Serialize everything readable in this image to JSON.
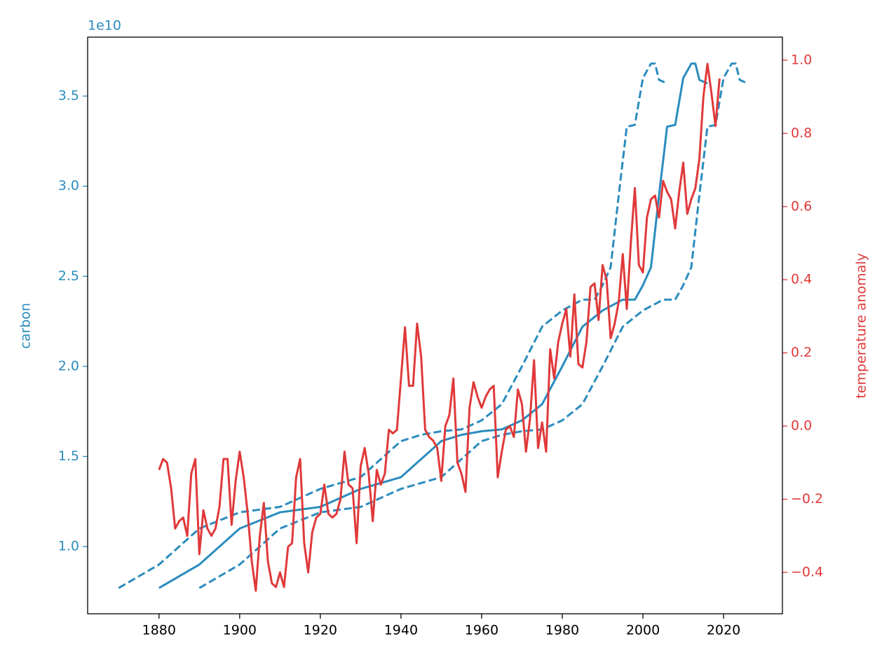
{
  "chart_data": {
    "type": "line",
    "offset_label": "1e10",
    "ylabel": "carbon",
    "y2label": "temperature anomaly",
    "xlim": [
      1862.3,
      2034.6
    ],
    "xticks": [
      1880,
      1900,
      1920,
      1940,
      1960,
      1980,
      2000,
      2020
    ],
    "ylim": [
      0.627,
      3.827
    ],
    "yticks": [
      {
        "value": 1,
        "label": "1.0"
      },
      1.5,
      {
        "value": 2,
        "label": "2.0"
      },
      2.5,
      {
        "value": 3,
        "label": "3.0"
      },
      3.5
    ],
    "y2lim": [
      -0.513,
      1.063
    ],
    "y2ticks": [
      {
        "value": -0.4,
        "label": "−0.4"
      },
      {
        "value": -0.2,
        "label": "−0.2"
      },
      {
        "value": 0,
        "label": "0.0"
      },
      0.2,
      0.4,
      0.6,
      0.8,
      {
        "value": 1,
        "label": "1.0"
      }
    ],
    "ycolor": "#2b8cbe",
    "y2color": "#e0393a",
    "series": [
      {
        "color": "#2b8cbe",
        "dashed": false,
        "x": [
          1880,
          1890,
          1900,
          1910,
          1920,
          1930,
          1940,
          1950,
          1955,
          1960,
          1965,
          1970,
          1975,
          1980,
          1985,
          1990,
          1995,
          1998,
          2000,
          2002,
          2004,
          2006,
          2008,
          2010,
          2012,
          2013,
          2014,
          2016
        ],
        "values": [
          0.77,
          0.9,
          1.1,
          1.19,
          1.22,
          1.32,
          1.385,
          1.585,
          1.62,
          1.64,
          1.65,
          1.7,
          1.79,
          2.0,
          2.22,
          2.31,
          2.37,
          2.37,
          2.45,
          2.55,
          2.95,
          3.33,
          3.34,
          3.6,
          3.68,
          3.68,
          3.59,
          3.57
        ]
      },
      {
        "color": "#2b8cbe",
        "dashed": true,
        "x": [
          1870,
          1880,
          1890,
          1900,
          1910,
          1920,
          1930,
          1940,
          1945,
          1950,
          1955,
          1960,
          1965,
          1970,
          1975,
          1980,
          1985,
          1988,
          1990,
          1992,
          1994,
          1996,
          1998,
          2000,
          2002,
          2003,
          2004,
          2006
        ],
        "values": [
          0.77,
          0.9,
          1.1,
          1.19,
          1.22,
          1.32,
          1.385,
          1.585,
          1.62,
          1.64,
          1.65,
          1.7,
          1.79,
          2.0,
          2.22,
          2.31,
          2.37,
          2.37,
          2.45,
          2.55,
          2.95,
          3.33,
          3.34,
          3.6,
          3.68,
          3.68,
          3.59,
          3.57
        ]
      },
      {
        "color": "#2b8cbe",
        "dashed": true,
        "x": [
          1890,
          1900,
          1910,
          1920,
          1930,
          1940,
          1950,
          1960,
          1965,
          1970,
          1975,
          1980,
          1985,
          1990,
          1995,
          2000,
          2005,
          2008,
          2010,
          2012,
          2014,
          2016,
          2018,
          2020,
          2022,
          2023,
          2024,
          2026
        ],
        "values": [
          0.77,
          0.9,
          1.1,
          1.19,
          1.22,
          1.32,
          1.385,
          1.585,
          1.62,
          1.64,
          1.65,
          1.7,
          1.79,
          2.0,
          2.22,
          2.31,
          2.37,
          2.37,
          2.45,
          2.55,
          2.95,
          3.33,
          3.34,
          3.6,
          3.68,
          3.68,
          3.59,
          3.57
        ]
      },
      {
        "color": "#e0393a",
        "dashed": false,
        "axis": "y2",
        "x": [
          1880,
          1881,
          1882,
          1883,
          1884,
          1885,
          1886,
          1887,
          1888,
          1889,
          1890,
          1891,
          1892,
          1893,
          1894,
          1895,
          1896,
          1897,
          1898,
          1899,
          1900,
          1901,
          1902,
          1903,
          1904,
          1905,
          1906,
          1907,
          1908,
          1909,
          1910,
          1911,
          1912,
          1913,
          1914,
          1915,
          1916,
          1917,
          1918,
          1919,
          1920,
          1921,
          1922,
          1923,
          1924,
          1925,
          1926,
          1927,
          1928,
          1929,
          1930,
          1931,
          1932,
          1933,
          1934,
          1935,
          1936,
          1937,
          1938,
          1939,
          1940,
          1941,
          1942,
          1943,
          1944,
          1945,
          1946,
          1947,
          1948,
          1949,
          1950,
          1951,
          1952,
          1953,
          1954,
          1955,
          1956,
          1957,
          1958,
          1959,
          1960,
          1961,
          1962,
          1963,
          1964,
          1965,
          1966,
          1967,
          1968,
          1969,
          1970,
          1971,
          1972,
          1973,
          1974,
          1975,
          1976,
          1977,
          1978,
          1979,
          1980,
          1981,
          1982,
          1983,
          1984,
          1985,
          1986,
          1987,
          1988,
          1989,
          1990,
          1991,
          1992,
          1993,
          1994,
          1995,
          1996,
          1997,
          1998,
          1999,
          2000,
          2001,
          2002,
          2003,
          2004,
          2005,
          2006,
          2007,
          2008,
          2009,
          2010,
          2011,
          2012,
          2013,
          2014,
          2015,
          2016,
          2017,
          2018,
          2019
        ],
        "values": [
          -0.12,
          -0.09,
          -0.1,
          -0.17,
          -0.28,
          -0.26,
          -0.25,
          -0.3,
          -0.13,
          -0.09,
          -0.35,
          -0.23,
          -0.28,
          -0.3,
          -0.28,
          -0.22,
          -0.09,
          -0.09,
          -0.27,
          -0.15,
          -0.07,
          -0.14,
          -0.24,
          -0.37,
          -0.45,
          -0.3,
          -0.21,
          -0.37,
          -0.43,
          -0.44,
          -0.4,
          -0.44,
          -0.33,
          -0.32,
          -0.14,
          -0.09,
          -0.32,
          -0.4,
          -0.29,
          -0.25,
          -0.24,
          -0.16,
          -0.24,
          -0.25,
          -0.24,
          -0.2,
          -0.07,
          -0.16,
          -0.17,
          -0.32,
          -0.11,
          -0.06,
          -0.13,
          -0.26,
          -0.12,
          -0.16,
          -0.13,
          -0.01,
          -0.02,
          -0.01,
          0.13,
          0.27,
          0.11,
          0.11,
          0.28,
          0.19,
          -0.01,
          -0.03,
          -0.04,
          -0.06,
          -0.15,
          0.0,
          0.03,
          0.13,
          -0.1,
          -0.13,
          -0.18,
          0.05,
          0.12,
          0.08,
          0.05,
          0.08,
          0.1,
          0.11,
          -0.14,
          -0.07,
          -0.01,
          0.0,
          -0.03,
          0.1,
          0.06,
          -0.07,
          0.02,
          0.18,
          -0.06,
          0.01,
          -0.07,
          0.21,
          0.13,
          0.23,
          0.28,
          0.32,
          0.19,
          0.36,
          0.17,
          0.16,
          0.23,
          0.38,
          0.39,
          0.29,
          0.44,
          0.4,
          0.24,
          0.28,
          0.34,
          0.47,
          0.32,
          0.5,
          0.65,
          0.44,
          0.42,
          0.57,
          0.62,
          0.63,
          0.57,
          0.67,
          0.64,
          0.62,
          0.54,
          0.64,
          0.72,
          0.58,
          0.62,
          0.65,
          0.73,
          0.9,
          0.99,
          0.91,
          0.82,
          0.95
        ]
      }
    ]
  }
}
